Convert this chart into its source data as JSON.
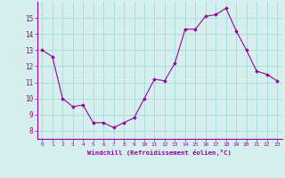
{
  "x": [
    0,
    1,
    2,
    3,
    4,
    5,
    6,
    7,
    8,
    9,
    10,
    11,
    12,
    13,
    14,
    15,
    16,
    17,
    18,
    19,
    20,
    21,
    22,
    23
  ],
  "y": [
    13.0,
    12.6,
    10.0,
    9.5,
    9.6,
    8.5,
    8.5,
    8.2,
    8.5,
    8.8,
    10.0,
    11.2,
    11.1,
    12.2,
    14.3,
    14.3,
    15.1,
    15.2,
    15.6,
    14.2,
    13.0,
    11.7,
    11.5,
    11.1
  ],
  "line_color": "#990099",
  "marker": "D",
  "marker_size": 1.8,
  "bg_color": "#d5eeee",
  "grid_color": "#aadddd",
  "xlabel": "Windchill (Refroidissement éolien,°C)",
  "xlabel_color": "#990099",
  "tick_color": "#990099",
  "xlim": [
    -0.5,
    23.5
  ],
  "ylim": [
    7.5,
    16.0
  ],
  "yticks": [
    8,
    9,
    10,
    11,
    12,
    13,
    14,
    15
  ],
  "xticks": [
    0,
    1,
    2,
    3,
    4,
    5,
    6,
    7,
    8,
    9,
    10,
    11,
    12,
    13,
    14,
    15,
    16,
    17,
    18,
    19,
    20,
    21,
    22,
    23
  ]
}
